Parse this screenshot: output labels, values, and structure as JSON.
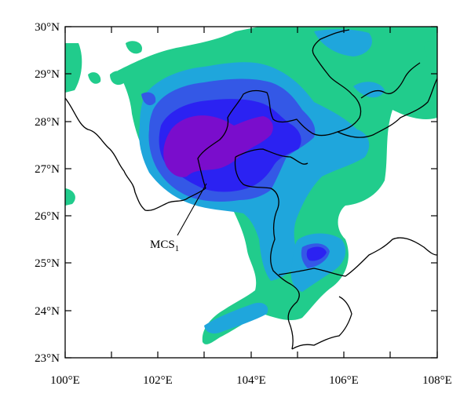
{
  "map": {
    "lat_labels": [
      "30°N",
      "29°N",
      "28°N",
      "27°N",
      "26°N",
      "25°N",
      "24°N",
      "23°N"
    ],
    "lon_labels": [
      "100°E",
      "102°E",
      "104°E",
      "106°E",
      "108°E"
    ],
    "annotation": {
      "text": "MCS",
      "subscript": "1",
      "lon": 103.05,
      "lat": 26.65
    },
    "extent": {
      "lon_min": 100,
      "lon_max": 108,
      "lat_min": 23,
      "lat_max": 30
    },
    "colors": {
      "level1": "#21cc8c",
      "level2": "#1fa6dc",
      "level3": "#3458e6",
      "level4": "#2b22f2",
      "level5": "#7a0dcc",
      "boundary": "#000000",
      "frame": "#000000"
    }
  }
}
